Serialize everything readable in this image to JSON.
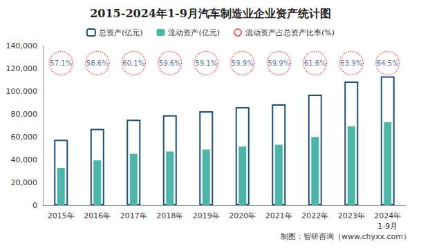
{
  "chart_data": {
    "type": "bar",
    "title": "2015-2024年1-9月汽车制造业企业资产统计图",
    "categories": [
      "2015年",
      "2016年",
      "2017年",
      "2018年",
      "2019年",
      "2020年",
      "2021年",
      "2022年",
      "2023年",
      "2024年\n1-9月"
    ],
    "series": [
      {
        "name": "总资产(亿元)",
        "type": "bar",
        "color": "#1f4e79",
        "values": [
          57500,
          67000,
          75000,
          79000,
          82500,
          86000,
          88500,
          97000,
          108500,
          113000
        ]
      },
      {
        "name": "流动资产(亿元)",
        "type": "bar",
        "color": "#4db6a9",
        "values": [
          32800,
          39300,
          45100,
          47100,
          48800,
          51500,
          53000,
          59800,
          69300,
          72900
        ]
      },
      {
        "name": "流动资产占总资产比率(%)",
        "type": "scatter",
        "color": "#e0404a",
        "marker": "circle",
        "line_style": "dotted",
        "values": [
          57.1,
          58.6,
          60.1,
          59.6,
          59.1,
          59.9,
          59.9,
          61.6,
          63.9,
          64.5
        ],
        "value_labels": [
          "57.1%",
          "58.6%",
          "60.1%",
          "59.6%",
          "59.1%",
          "59.9%",
          "59.9%",
          "61.6%",
          "63.9%",
          "64.5%"
        ]
      }
    ],
    "ylim": [
      0,
      140000
    ],
    "yticks": [
      0,
      20000,
      40000,
      60000,
      80000,
      100000,
      120000,
      140000
    ],
    "grid": false,
    "legend": "top",
    "data_labels": false,
    "annotations": [
      "制图：智研咨询（www.chyxx.com）"
    ]
  }
}
